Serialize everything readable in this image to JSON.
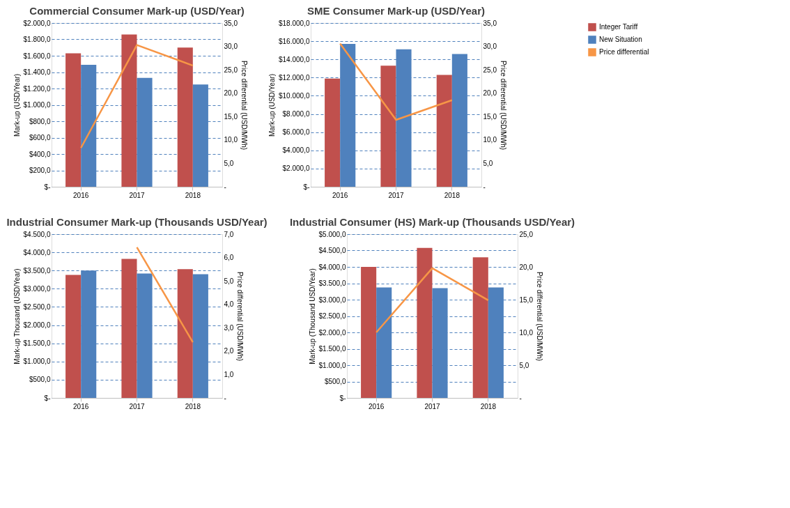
{
  "chart_data": [
    {
      "type": "bar",
      "title": "Commercial Consumer Mark-up (USD/Year)",
      "ylabel": "Mark-up (USD/Year)",
      "y2label": "Price differential (USD/MWh)",
      "categories": [
        "2016",
        "2017",
        "2018"
      ],
      "series": [
        {
          "name": "Integer Tariff",
          "color": "#c0504d",
          "values": [
            1630,
            1860,
            1700
          ]
        },
        {
          "name": "New Situation",
          "color": "#4f81bd",
          "values": [
            1490,
            1330,
            1250
          ]
        },
        {
          "name": "Price differential",
          "color": "#f79646",
          "type": "line",
          "axis": "y2",
          "values": [
            8.3,
            30.3,
            25.9
          ]
        }
      ],
      "ylim": [
        0,
        2000
      ],
      "yticks": [
        {
          "value": 0,
          "label": "$-"
        },
        {
          "value": 200,
          "label": "$200,0"
        },
        {
          "value": 400,
          "label": "$400,0"
        },
        {
          "value": 600,
          "label": "$600,0"
        },
        {
          "value": 800,
          "label": "$800,0"
        },
        {
          "value": 1000,
          "label": "$1.000,0"
        },
        {
          "value": 1200,
          "label": "$1.200,0"
        },
        {
          "value": 1400,
          "label": "$1.400,0"
        },
        {
          "value": 1600,
          "label": "$1.600,0"
        },
        {
          "value": 1800,
          "label": "$1.800,0"
        },
        {
          "value": 2000,
          "label": "$2.000,0"
        }
      ],
      "y2lim": [
        0,
        35
      ],
      "y2ticks": [
        {
          "value": 0,
          "label": "-"
        },
        {
          "value": 5,
          "label": "5,0"
        },
        {
          "value": 10,
          "label": "10,0"
        },
        {
          "value": 15,
          "label": "15,0"
        },
        {
          "value": 20,
          "label": "20,0"
        },
        {
          "value": 25,
          "label": "25,0"
        },
        {
          "value": 30,
          "label": "30,0"
        },
        {
          "value": 35,
          "label": "35,0"
        }
      ],
      "grid": "y",
      "legend": "right"
    },
    {
      "type": "bar",
      "title": "SME Consumer Mark-up (USD/Year)",
      "ylabel": "Mark-up (USD/Year)",
      "y2label": "Price differential (USD/MWh)",
      "categories": [
        "2016",
        "2017",
        "2018"
      ],
      "series": [
        {
          "name": "Integer Tariff",
          "color": "#c0504d",
          "values": [
            11900,
            13300,
            12300
          ]
        },
        {
          "name": "New Situation",
          "color": "#4f81bd",
          "values": [
            15700,
            15100,
            14600
          ]
        },
        {
          "name": "Price differential",
          "color": "#f79646",
          "type": "line",
          "axis": "y2",
          "values": [
            30.6,
            14.3,
            18.5
          ]
        }
      ],
      "ylim": [
        0,
        18000
      ],
      "yticks": [
        {
          "value": 0,
          "label": "$-"
        },
        {
          "value": 2000,
          "label": "$2.000,0"
        },
        {
          "value": 4000,
          "label": "$4.000,0"
        },
        {
          "value": 6000,
          "label": "$6.000,0"
        },
        {
          "value": 8000,
          "label": "$8.000,0"
        },
        {
          "value": 10000,
          "label": "$10.000,0"
        },
        {
          "value": 12000,
          "label": "$12.000,0"
        },
        {
          "value": 14000,
          "label": "$14.000,0"
        },
        {
          "value": 16000,
          "label": "$16.000,0"
        },
        {
          "value": 18000,
          "label": "$18.000,0"
        }
      ],
      "y2lim": [
        0,
        35
      ],
      "y2ticks": [
        {
          "value": 0,
          "label": "-"
        },
        {
          "value": 5,
          "label": "5,0"
        },
        {
          "value": 10,
          "label": "10,0"
        },
        {
          "value": 15,
          "label": "15,0"
        },
        {
          "value": 20,
          "label": "20,0"
        },
        {
          "value": 25,
          "label": "25,0"
        },
        {
          "value": 30,
          "label": "30,0"
        },
        {
          "value": 35,
          "label": "35,0"
        }
      ],
      "grid": "y",
      "legend": "right"
    },
    {
      "type": "bar",
      "title": "Industrial Consumer Mark-up (Thousands USD/Year)",
      "ylabel": "Mark-up Thousand (USD/Year)",
      "y2label": "Price differential (USD/MWh)",
      "categories": [
        "2016",
        "2017",
        "2018"
      ],
      "series": [
        {
          "name": "Integer Tariff",
          "color": "#c0504d",
          "values": [
            3380,
            3820,
            3540
          ]
        },
        {
          "name": "New Situation",
          "color": "#4f81bd",
          "values": [
            3500,
            3420,
            3400
          ]
        },
        {
          "name": "Price differential",
          "color": "#f79646",
          "type": "line",
          "axis": "y2",
          "values": [
            null,
            6.44,
            2.38
          ]
        }
      ],
      "ylim": [
        0,
        4500
      ],
      "yticks": [
        {
          "value": 0,
          "label": "$-"
        },
        {
          "value": 500,
          "label": "$500,0"
        },
        {
          "value": 1000,
          "label": "$1.000,0"
        },
        {
          "value": 1500,
          "label": "$1.500,0"
        },
        {
          "value": 2000,
          "label": "$2.000,0"
        },
        {
          "value": 2500,
          "label": "$2.500,0"
        },
        {
          "value": 3000,
          "label": "$3.000,0"
        },
        {
          "value": 3500,
          "label": "$3.500,0"
        },
        {
          "value": 4000,
          "label": "$4.000,0"
        },
        {
          "value": 4500,
          "label": "$4.500,0"
        }
      ],
      "y2lim": [
        0,
        7
      ],
      "y2ticks": [
        {
          "value": 0,
          "label": "-"
        },
        {
          "value": 1,
          "label": "1,0"
        },
        {
          "value": 2,
          "label": "2,0"
        },
        {
          "value": 3,
          "label": "3,0"
        },
        {
          "value": 4,
          "label": "4,0"
        },
        {
          "value": 5,
          "label": "5,0"
        },
        {
          "value": 6,
          "label": "6,0"
        },
        {
          "value": 7,
          "label": "7,0"
        }
      ],
      "grid": "y",
      "legend": "right"
    },
    {
      "type": "bar",
      "title": "Industrial Consumer (HS) Mark-up (Thousands USD/Year)",
      "ylabel": "Mark-up (Thousand USD/Year)",
      "y2label": "Price differential (USD/MWh)",
      "categories": [
        "2016",
        "2017",
        "2018"
      ],
      "series": [
        {
          "name": "Integer Tariff",
          "color": "#c0504d",
          "values": [
            4000,
            4580,
            4290
          ]
        },
        {
          "name": "New Situation",
          "color": "#4f81bd",
          "values": [
            3370,
            3350,
            3370
          ]
        },
        {
          "name": "Price differential",
          "color": "#f79646",
          "type": "line",
          "axis": "y2",
          "values": [
            10.0,
            19.8,
            14.9
          ]
        }
      ],
      "ylim": [
        0,
        5000
      ],
      "yticks": [
        {
          "value": 0,
          "label": "$-"
        },
        {
          "value": 500,
          "label": "$500,0"
        },
        {
          "value": 1000,
          "label": "$1.000,0"
        },
        {
          "value": 1500,
          "label": "$1.500,0"
        },
        {
          "value": 2000,
          "label": "$2.000,0"
        },
        {
          "value": 2500,
          "label": "$2.500,0"
        },
        {
          "value": 3000,
          "label": "$3.000,0"
        },
        {
          "value": 3500,
          "label": "$3.500,0"
        },
        {
          "value": 4000,
          "label": "$4.000,0"
        },
        {
          "value": 4500,
          "label": "$4.500,0"
        },
        {
          "value": 5000,
          "label": "$5.000,0"
        }
      ],
      "y2lim": [
        0,
        25
      ],
      "y2ticks": [
        {
          "value": 0,
          "label": "-"
        },
        {
          "value": 5,
          "label": "5,0"
        },
        {
          "value": 10,
          "label": "10,0"
        },
        {
          "value": 15,
          "label": "15,0"
        },
        {
          "value": 20,
          "label": "20,0"
        },
        {
          "value": 25,
          "label": "25,0"
        }
      ],
      "grid": "y",
      "legend": "right"
    }
  ]
}
